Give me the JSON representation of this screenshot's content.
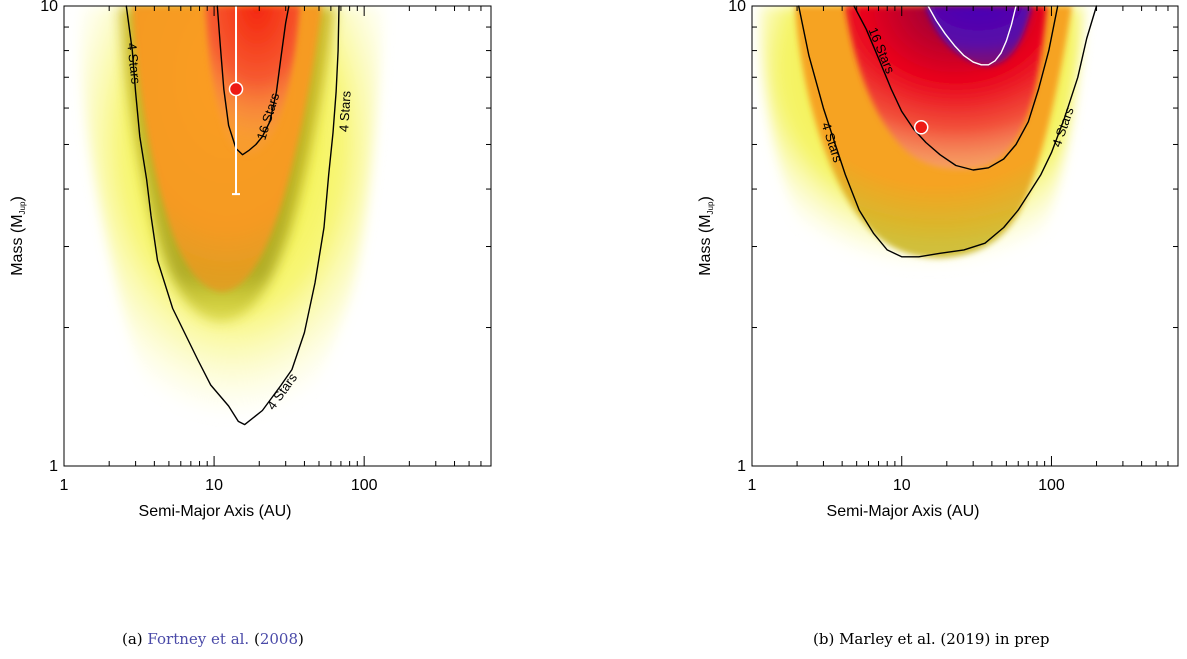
{
  "chart_data": [
    {
      "type": "heatmap",
      "panel": "a",
      "xlabel": "Semi-Major Axis (AU)",
      "ylabel": "Mass (M",
      "ylabel_sub": "Jup",
      "ylabel_close": ")",
      "xscale": "log",
      "yscale": "log",
      "xlim": [
        1,
        700
      ],
      "ylim": [
        1,
        10
      ],
      "x_tick_labels": [
        {
          "value": 1,
          "label": "1"
        },
        {
          "value": 10,
          "label": "10"
        },
        {
          "value": 100,
          "label": "100"
        }
      ],
      "y_tick_labels": [
        {
          "value": 1,
          "label": "1"
        },
        {
          "value": 10,
          "label": "10"
        }
      ],
      "contours": [
        {
          "label": "4 Stars",
          "level": 4,
          "a": [
            2.6,
            2.85,
            3.0,
            3.2,
            3.55,
            3.8,
            4.2,
            5.3,
            7.8,
            9.5,
            12.5,
            14.5,
            16,
            21,
            28,
            33,
            40,
            47,
            54,
            58,
            62,
            65,
            67,
            68
          ],
          "m": [
            10,
            8.0,
            6.5,
            5.2,
            4.2,
            3.5,
            2.8,
            2.2,
            1.7,
            1.5,
            1.35,
            1.25,
            1.23,
            1.32,
            1.5,
            1.62,
            1.95,
            2.5,
            3.3,
            4.3,
            5.3,
            6.5,
            8.0,
            10
          ]
        },
        {
          "label": "16 Stars",
          "level": 16,
          "a": [
            10.5,
            11.0,
            11.6,
            12.5,
            14.0,
            15.5,
            17.0,
            19.0,
            21.0,
            23.5,
            26.0,
            28.0,
            30.0,
            31.5
          ],
          "m": [
            10,
            8.2,
            6.6,
            5.5,
            4.9,
            4.75,
            4.85,
            5.0,
            5.2,
            5.6,
            6.5,
            7.8,
            9.2,
            10
          ]
        }
      ],
      "contour_labels": [
        {
          "text": "4 Stars",
          "a": 2.9,
          "m": 7.5
        },
        {
          "text": "16 Stars",
          "a": 23.0,
          "m": 5.75
        },
        {
          "text": "4 Stars",
          "a": 75.0,
          "m": 5.9
        },
        {
          "text": "4 Stars",
          "a": 28.5,
          "m": 1.45
        }
      ],
      "point": {
        "a": 14.0,
        "m": 6.6,
        "m_low": 3.9,
        "m_high": 10
      },
      "colors": {
        "point": "#ee1a14",
        "errorbar": "#ffffff",
        "contour": "#000000"
      }
    },
    {
      "type": "heatmap",
      "panel": "b",
      "xlabel": "Semi-Major Axis (AU)",
      "ylabel": "Mass (M",
      "ylabel_sub": "Jup",
      "ylabel_close": ")",
      "xscale": "log",
      "yscale": "log",
      "xlim": [
        1,
        700
      ],
      "ylim": [
        1,
        10
      ],
      "x_tick_labels": [
        {
          "value": 1,
          "label": "1"
        },
        {
          "value": 10,
          "label": "10"
        },
        {
          "value": 100,
          "label": "100"
        }
      ],
      "y_tick_labels": [
        {
          "value": 1,
          "label": "1"
        },
        {
          "value": 10,
          "label": "10"
        }
      ],
      "contours": [
        {
          "label": "4 Stars",
          "level": 4,
          "a": [
            2.05,
            2.4,
            3.0,
            3.6,
            4.2,
            5.2,
            6.5,
            8.0,
            10,
            13,
            18,
            26,
            36,
            48,
            60,
            72,
            85,
            100,
            122,
            150,
            172,
            200
          ],
          "m": [
            10,
            7.8,
            6.0,
            5.0,
            4.3,
            3.6,
            3.2,
            2.95,
            2.85,
            2.85,
            2.9,
            2.95,
            3.05,
            3.3,
            3.6,
            3.95,
            4.3,
            4.8,
            5.7,
            7.0,
            8.5,
            10
          ]
        },
        {
          "label": "16 Stars",
          "level": 16,
          "a": [
            4.8,
            5.8,
            7.0,
            8.5,
            10,
            12,
            14.5,
            18,
            23,
            30,
            38,
            48,
            58,
            70,
            82,
            96,
            110
          ],
          "m": [
            10,
            8.9,
            7.7,
            6.6,
            5.9,
            5.4,
            5.05,
            4.75,
            4.5,
            4.4,
            4.45,
            4.65,
            5.0,
            5.6,
            6.6,
            8.0,
            10
          ]
        },
        {
          "label": "",
          "level": 64,
          "a": [
            15,
            17,
            19.5,
            22.5,
            26,
            30,
            34,
            38,
            42,
            46,
            50,
            54,
            58
          ],
          "m": [
            10,
            9.3,
            8.7,
            8.2,
            7.8,
            7.55,
            7.45,
            7.45,
            7.6,
            7.9,
            8.4,
            9.1,
            10
          ]
        }
      ],
      "contour_labels": [
        {
          "text": "16 Stars",
          "a": 7.3,
          "m": 8.0
        },
        {
          "text": "4 Stars",
          "a": 3.4,
          "m": 5.05
        },
        {
          "text": "4 Stars",
          "a": 120.0,
          "m": 5.45
        }
      ],
      "point": {
        "a": 13.5,
        "m": 5.45
      },
      "colors": {
        "point": "#ee1a14",
        "contour_inner": "#ffffff",
        "contour": "#000000"
      }
    }
  ],
  "captions": {
    "a": {
      "prefix": "(a) ",
      "author": "Fortney et al.",
      "open": " (",
      "year": "2008",
      "close": ")"
    },
    "b": {
      "text": "(b) Marley et al. (2019) in prep"
    }
  }
}
